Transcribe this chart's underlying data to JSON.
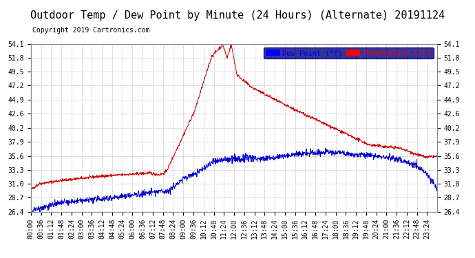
{
  "title": "Outdoor Temp / Dew Point by Minute (24 Hours) (Alternate) 20191124",
  "copyright": "Copyright 2019 Cartronics.com",
  "legend_labels": [
    "Dew Point (°F)",
    "Temperature (°F)"
  ],
  "legend_colors": [
    "#0000ff",
    "#ff0000"
  ],
  "legend_bg": "#000080",
  "bg_color": "#ffffff",
  "grid_color": "#c0c0c0",
  "ylim": [
    26.4,
    54.1
  ],
  "yticks": [
    26.4,
    28.7,
    31.0,
    33.3,
    35.6,
    37.9,
    40.2,
    42.6,
    44.9,
    47.2,
    49.5,
    51.8,
    54.1
  ],
  "title_fontsize": 11,
  "tick_fontsize": 7,
  "copyright_fontsize": 7,
  "temp_color": "#cc0000",
  "dew_color": "#0000cc",
  "n_xticks": 40
}
